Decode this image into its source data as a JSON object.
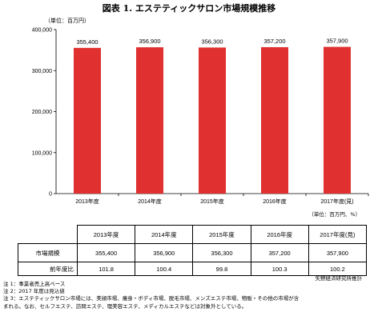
{
  "title": "図表 1.  エステティックサロン市場規模推移",
  "chart_data": {
    "type": "bar",
    "unit_label": "（単位：百万円）",
    "categories": [
      "2013年度",
      "2014年度",
      "2015年度",
      "2016年度",
      "2017年度(見)"
    ],
    "values": [
      355400,
      356900,
      356300,
      357200,
      357900
    ],
    "value_labels": [
      "355,400",
      "356,900",
      "356,300",
      "357,200",
      "357,900"
    ],
    "ylim": [
      0,
      400000
    ],
    "yticks": [
      "0",
      "100,000",
      "200,000",
      "300,000",
      "400,000"
    ],
    "bar_color": "#e03030",
    "grid": false
  },
  "table": {
    "unit_note": "（単位：百万円、%）",
    "headers": [
      "2013年度",
      "2014年度",
      "2015年度",
      "2016年度",
      "2017年度(見)"
    ],
    "rows": [
      {
        "label": "市場規模",
        "values": [
          "355,400",
          "356,900",
          "356,300",
          "357,200",
          "357,900"
        ]
      },
      {
        "label": "前年度比",
        "values": [
          "101.8",
          "100.4",
          "99.8",
          "100.3",
          "100.2"
        ]
      }
    ]
  },
  "source": "矢野経済研究所推計",
  "notes": [
    "注 1：事業者売上高ベース",
    "注 2：2017 年度は見込値",
    "注 3：エステティックサロン市場には、美顔市場、痩身・ボディ市場、脱毛市場、メンズエステ市場、物販・その他の市場が含",
    "まれる。なお、セルフエステ、訪問エステ、理美容エステ、メディカルエステなどは対象外としている。"
  ]
}
